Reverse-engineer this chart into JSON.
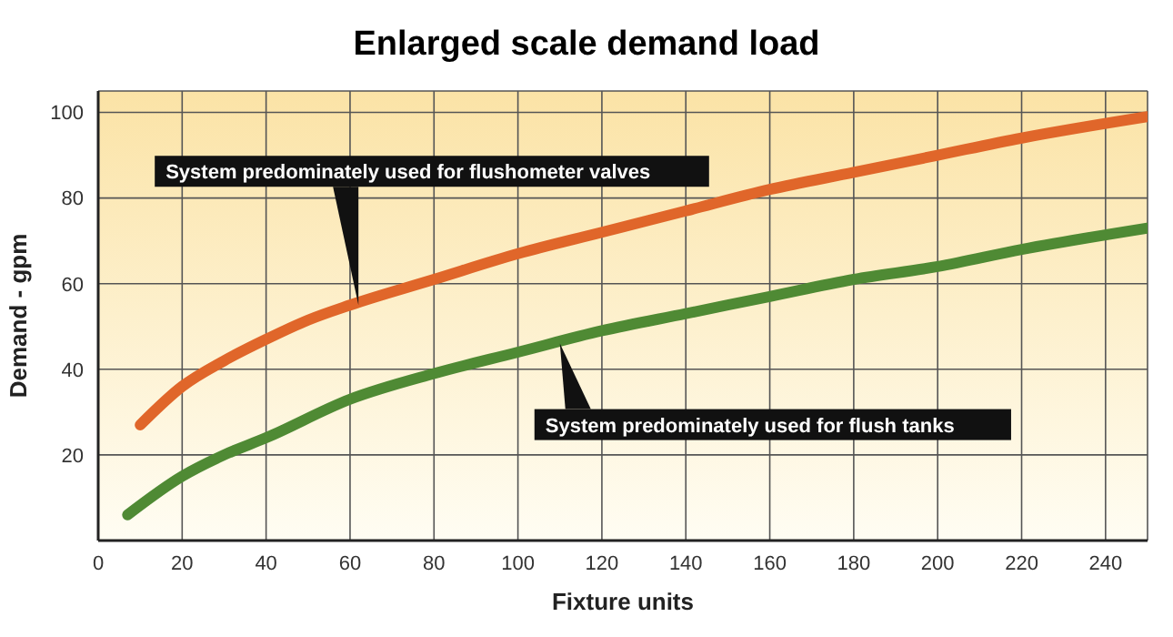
{
  "chart_data": {
    "type": "line",
    "title": "Enlarged scale demand load",
    "xlabel": "Fixture units",
    "ylabel": "Demand - gpm",
    "xlim": [
      0,
      250
    ],
    "ylim": [
      0,
      105
    ],
    "xticks": [
      0,
      20,
      40,
      60,
      80,
      100,
      120,
      140,
      160,
      180,
      200,
      220,
      240
    ],
    "yticks": [
      20,
      40,
      60,
      80,
      100
    ],
    "grid": true,
    "line_style": "solid",
    "marker": "none",
    "series": [
      {
        "color": "#e0662a",
        "x": [
          10,
          20,
          30,
          40,
          50,
          60,
          80,
          100,
          120,
          140,
          160,
          180,
          200,
          220,
          250
        ],
        "values": [
          27,
          36,
          42,
          47,
          51.5,
          55,
          61,
          67,
          72,
          77,
          82,
          86,
          90,
          94,
          99
        ]
      },
      {
        "color": "#4f8a34",
        "x": [
          7,
          20,
          30,
          40,
          60,
          80,
          100,
          120,
          140,
          160,
          180,
          200,
          220,
          250
        ],
        "values": [
          6,
          15,
          20,
          24,
          33,
          39,
          44,
          49,
          53,
          57,
          61,
          64,
          68,
          73
        ]
      }
    ],
    "annotations": [
      {
        "text": "System predominately used for flushometer valves",
        "x": 62,
        "y": 55
      },
      {
        "text": "System predominately used for flush tanks",
        "x": 110,
        "y": 46
      }
    ]
  }
}
